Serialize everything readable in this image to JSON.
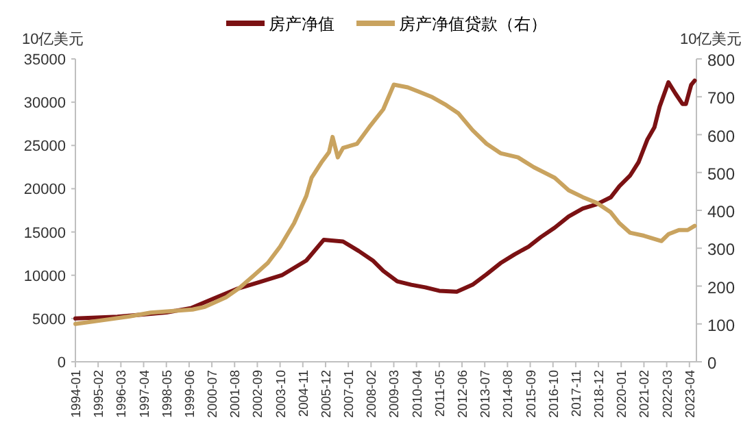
{
  "chart_data": {
    "type": "line",
    "ylabel": "10亿美元",
    "y2label": "10亿美元",
    "legend": "top",
    "grid": false,
    "marker": "none",
    "line_style": "solid",
    "xlim": [
      "1994-01",
      "2023-08"
    ],
    "xticks": [
      "1994-01",
      "1995-02",
      "1996-03",
      "1997-04",
      "1998-05",
      "1999-06",
      "2000-07",
      "2001-08",
      "2002-09",
      "2003-10",
      "2004-11",
      "2005-12",
      "2007-01",
      "2008-02",
      "2009-03",
      "2010-04",
      "2011-05",
      "2012-06",
      "2013-07",
      "2014-08",
      "2015-09",
      "2016-10",
      "2017-11",
      "2018-12",
      "2020-01",
      "2021-02",
      "2022-03",
      "2023-04"
    ],
    "ylim": [
      0,
      35000
    ],
    "yticks": [
      0,
      5000,
      10000,
      15000,
      20000,
      25000,
      30000,
      35000
    ],
    "y2lim": [
      0,
      800
    ],
    "y2ticks": [
      0,
      100,
      200,
      300,
      400,
      500,
      600,
      700,
      800
    ],
    "series": [
      {
        "name": "房产净值",
        "color": "#7b1113",
        "x": [
          "1994-01",
          "1996-01",
          "1998-05",
          "1999-07",
          "2000-08",
          "2001-09",
          "2002-10",
          "2003-11",
          "2005-01",
          "2005-11",
          "2006-10",
          "2007-07",
          "2008-03",
          "2008-09",
          "2009-05",
          "2010-01",
          "2010-09",
          "2011-05",
          "2012-03",
          "2012-12",
          "2013-08",
          "2014-04",
          "2014-12",
          "2015-08",
          "2016-03",
          "2016-11",
          "2017-07",
          "2018-03",
          "2018-11",
          "2019-07",
          "2019-12",
          "2020-06",
          "2020-11",
          "2021-04",
          "2021-08",
          "2021-11",
          "2022-04",
          "2022-08",
          "2022-12",
          "2023-02",
          "2023-05",
          "2023-07"
        ],
        "values": [
          5000,
          5200,
          5700,
          6200,
          7300,
          8400,
          9200,
          10000,
          11700,
          14100,
          13900,
          12800,
          11700,
          10500,
          9300,
          8900,
          8600,
          8200,
          8100,
          8900,
          10100,
          11400,
          12400,
          13300,
          14400,
          15500,
          16800,
          17700,
          18200,
          19000,
          20300,
          21500,
          23100,
          25700,
          27100,
          29500,
          32300,
          31000,
          29800,
          29800,
          32000,
          32500
        ]
      },
      {
        "name": "房产净值贷款（右）",
        "color": "#c9a35f",
        "axis": "y2",
        "x": [
          "1994-01",
          "1995-08",
          "1996-08",
          "1997-08",
          "1998-08",
          "1999-08",
          "2000-03",
          "2001-03",
          "2001-11",
          "2002-07",
          "2003-03",
          "2003-10",
          "2004-06",
          "2005-01",
          "2005-04",
          "2005-10",
          "2006-02",
          "2006-04",
          "2006-07",
          "2006-10",
          "2007-06",
          "2008-01",
          "2008-09",
          "2009-03",
          "2009-11",
          "2010-05",
          "2011-01",
          "2011-09",
          "2012-04",
          "2012-12",
          "2013-08",
          "2014-04",
          "2015-02",
          "2015-11",
          "2016-11",
          "2017-07",
          "2018-03",
          "2018-11",
          "2019-07",
          "2019-12",
          "2020-06",
          "2021-02",
          "2021-12",
          "2022-04",
          "2022-10",
          "2023-03",
          "2023-07"
        ],
        "values": [
          100,
          112,
          120,
          130,
          134,
          138,
          145,
          170,
          196,
          228,
          261,
          304,
          366,
          438,
          486,
          529,
          554,
          594,
          540,
          565,
          576,
          620,
          667,
          732,
          725,
          714,
          699,
          678,
          656,
          612,
          576,
          551,
          540,
          514,
          486,
          453,
          435,
          420,
          395,
          366,
          341,
          333,
          319,
          337,
          348,
          348,
          359
        ]
      }
    ]
  }
}
